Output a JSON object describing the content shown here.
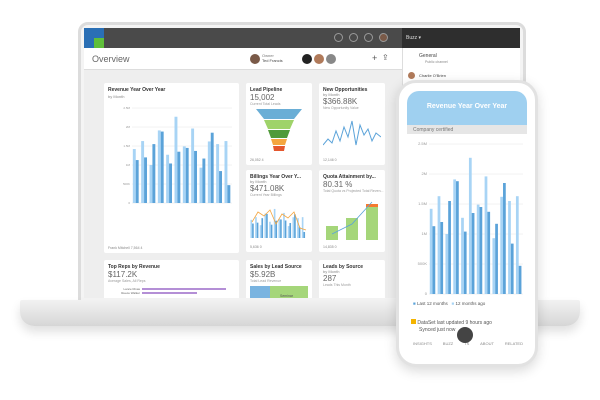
{
  "header": {
    "title": "Overview",
    "owner_label": "Owner",
    "owner_name": "Ted Francis"
  },
  "buzz": {
    "label": "Buzz ▾",
    "channel": "General",
    "channel_sub": "Public channel",
    "user": "Charlie O'Brien"
  },
  "cards": [
    {
      "title": "Revenue Year Over Year",
      "sub": "by Month",
      "footer": "Frank Mitchell   7,564   4"
    },
    {
      "title": "Lead Pipeline",
      "value": "15,002",
      "label": "Current Total Leads",
      "footer": "26,052   4"
    },
    {
      "title": "New Opportunities",
      "sub": "by Month",
      "value": "$366.88K",
      "label": "New Opportunity Value",
      "footer": "12,146   0"
    },
    {
      "title": "Billings Year Over Y...",
      "sub": "by Month",
      "value": "$471.08K",
      "label": "Current Year Billings",
      "footer": "5,636   0"
    },
    {
      "title": "Quota Attainment by...",
      "value": "80.31 %",
      "label": "Total Quota vs Projected Total Reven...",
      "footer": "14,835   0"
    },
    {
      "title": "Top Reps by Revenue",
      "value": "$117.2K",
      "label": "Average Sales, All Reps",
      "reps": [
        "Lance Rivas",
        "Reece Walker"
      ]
    },
    {
      "title": "Sales by Lead Source",
      "value": "$5.92B",
      "label": "Total Lead Revenue",
      "segment": "Seminar"
    },
    {
      "title": "Leads by Source",
      "sub": "by Month",
      "value": "287",
      "label": "Leads This Month"
    }
  ],
  "phone": {
    "title": "Revenue Year Over Year",
    "certified": "Company certified",
    "legend": [
      "Last 12 months",
      "12 months ago"
    ],
    "dataset": "DataSet last updated 9 hours ago",
    "synced": "Synced just now",
    "nav": [
      "INSIGHTS",
      "BUZZ",
      "TS",
      "ABOUT",
      "RELATED"
    ]
  },
  "colors": {
    "light": "#a8d4f5",
    "dark": "#5ba3d9",
    "header": "#9fd0f0",
    "topbar": "#4a4a4a"
  },
  "chart_data": {
    "type": "bar",
    "title": "Revenue Year Over Year",
    "ylim": [
      0,
      2500000
    ],
    "yticks": [
      "0",
      "500K",
      "1M",
      "1.5M",
      "2M",
      "2.5M"
    ],
    "series": [
      {
        "name": "12 months ago",
        "values": [
          1420000,
          1630000,
          1000000,
          1910000,
          1270000,
          2270000,
          1490000,
          1960000,
          930000,
          1620000,
          1550000,
          1630000
        ]
      },
      {
        "name": "Last 12 months",
        "values": [
          1130000,
          1200000,
          1550000,
          1880000,
          1040000,
          1350000,
          1450000,
          1370000,
          1170000,
          1850000,
          840000,
          470000
        ]
      }
    ]
  }
}
